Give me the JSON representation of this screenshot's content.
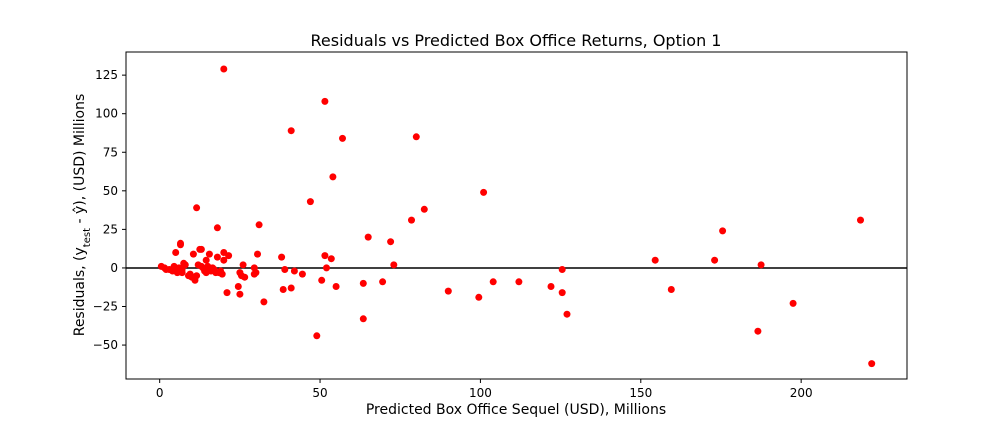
{
  "chart_data": {
    "type": "scatter",
    "title": "Residuals vs Predicted Box Office Returns, Option 1",
    "xlabel": "Predicted Box Office Sequel (USD), Millions",
    "ylabel_parts": [
      "Residuals, (y",
      "test",
      " - ŷ), (USD) Millions"
    ],
    "xlim": [
      -10.5,
      233
    ],
    "ylim": [
      -72,
      140
    ],
    "xticks": [
      0,
      50,
      100,
      150,
      200
    ],
    "yticks": [
      -50,
      -25,
      0,
      25,
      50,
      75,
      100,
      125
    ],
    "xtick_labels": [
      "0",
      "50",
      "100",
      "150",
      "200"
    ],
    "ytick_labels": [
      "−50",
      "−25",
      "0",
      "25",
      "50",
      "75",
      "100",
      "125"
    ],
    "grid": false,
    "reference_line_y": 0,
    "marker_color": "#ff0000",
    "points": [
      [
        0.5,
        1
      ],
      [
        1.5,
        0
      ],
      [
        2,
        -1
      ],
      [
        3,
        -1
      ],
      [
        4,
        -2
      ],
      [
        4.5,
        1
      ],
      [
        5,
        10
      ],
      [
        5,
        -1
      ],
      [
        5.5,
        -3
      ],
      [
        6,
        0
      ],
      [
        6.5,
        15
      ],
      [
        6.5,
        16
      ],
      [
        7,
        -3
      ],
      [
        7,
        -1
      ],
      [
        7.5,
        3
      ],
      [
        8,
        2
      ],
      [
        9,
        -5
      ],
      [
        9.5,
        -4
      ],
      [
        10,
        -6
      ],
      [
        10.5,
        9
      ],
      [
        10.5,
        -6
      ],
      [
        11,
        -8
      ],
      [
        11.5,
        -5
      ],
      [
        11.5,
        39
      ],
      [
        12,
        2
      ],
      [
        12.5,
        12
      ],
      [
        13,
        12
      ],
      [
        13,
        1
      ],
      [
        13.5,
        0
      ],
      [
        14,
        -2
      ],
      [
        14.5,
        -3
      ],
      [
        14.5,
        5
      ],
      [
        15,
        1
      ],
      [
        15.5,
        9
      ],
      [
        16,
        -2
      ],
      [
        16.5,
        0
      ],
      [
        17,
        -1
      ],
      [
        17.5,
        -3
      ],
      [
        18,
        7
      ],
      [
        18,
        26
      ],
      [
        18.5,
        -3
      ],
      [
        19,
        -2
      ],
      [
        19.5,
        -4
      ],
      [
        20,
        10
      ],
      [
        20,
        5
      ],
      [
        20,
        129
      ],
      [
        21,
        -16
      ],
      [
        21.5,
        8
      ],
      [
        24.5,
        -12
      ],
      [
        25,
        -17
      ],
      [
        25,
        -3
      ],
      [
        25.5,
        -5
      ],
      [
        26,
        2
      ],
      [
        26.5,
        -6
      ],
      [
        29.5,
        0
      ],
      [
        29.5,
        -4
      ],
      [
        30,
        -3
      ],
      [
        30.5,
        9
      ],
      [
        31,
        28
      ],
      [
        32.5,
        -22
      ],
      [
        38,
        7
      ],
      [
        38.5,
        -14
      ],
      [
        39,
        -1
      ],
      [
        41,
        89
      ],
      [
        41,
        -13
      ],
      [
        42,
        -2
      ],
      [
        44.5,
        -4
      ],
      [
        47,
        43
      ],
      [
        49,
        -44
      ],
      [
        50.5,
        -8
      ],
      [
        51.5,
        108
      ],
      [
        51.5,
        8
      ],
      [
        52,
        0
      ],
      [
        53.5,
        6
      ],
      [
        54,
        59
      ],
      [
        55,
        -12
      ],
      [
        57,
        84
      ],
      [
        63.5,
        -33
      ],
      [
        63.5,
        -10
      ],
      [
        65,
        20
      ],
      [
        69.5,
        -9
      ],
      [
        72,
        17
      ],
      [
        73,
        2
      ],
      [
        78.5,
        31
      ],
      [
        80,
        85
      ],
      [
        82.5,
        38
      ],
      [
        90,
        -15
      ],
      [
        99.5,
        -19
      ],
      [
        101,
        49
      ],
      [
        104,
        -9
      ],
      [
        112,
        -9
      ],
      [
        122,
        -12
      ],
      [
        125.5,
        -1
      ],
      [
        125.5,
        -16
      ],
      [
        127,
        -30
      ],
      [
        154.5,
        5
      ],
      [
        159.5,
        -14
      ],
      [
        173,
        5
      ],
      [
        175.5,
        24
      ],
      [
        186.5,
        -41
      ],
      [
        187.5,
        2
      ],
      [
        197.5,
        -23
      ],
      [
        218.5,
        31
      ],
      [
        222,
        -62
      ]
    ]
  }
}
